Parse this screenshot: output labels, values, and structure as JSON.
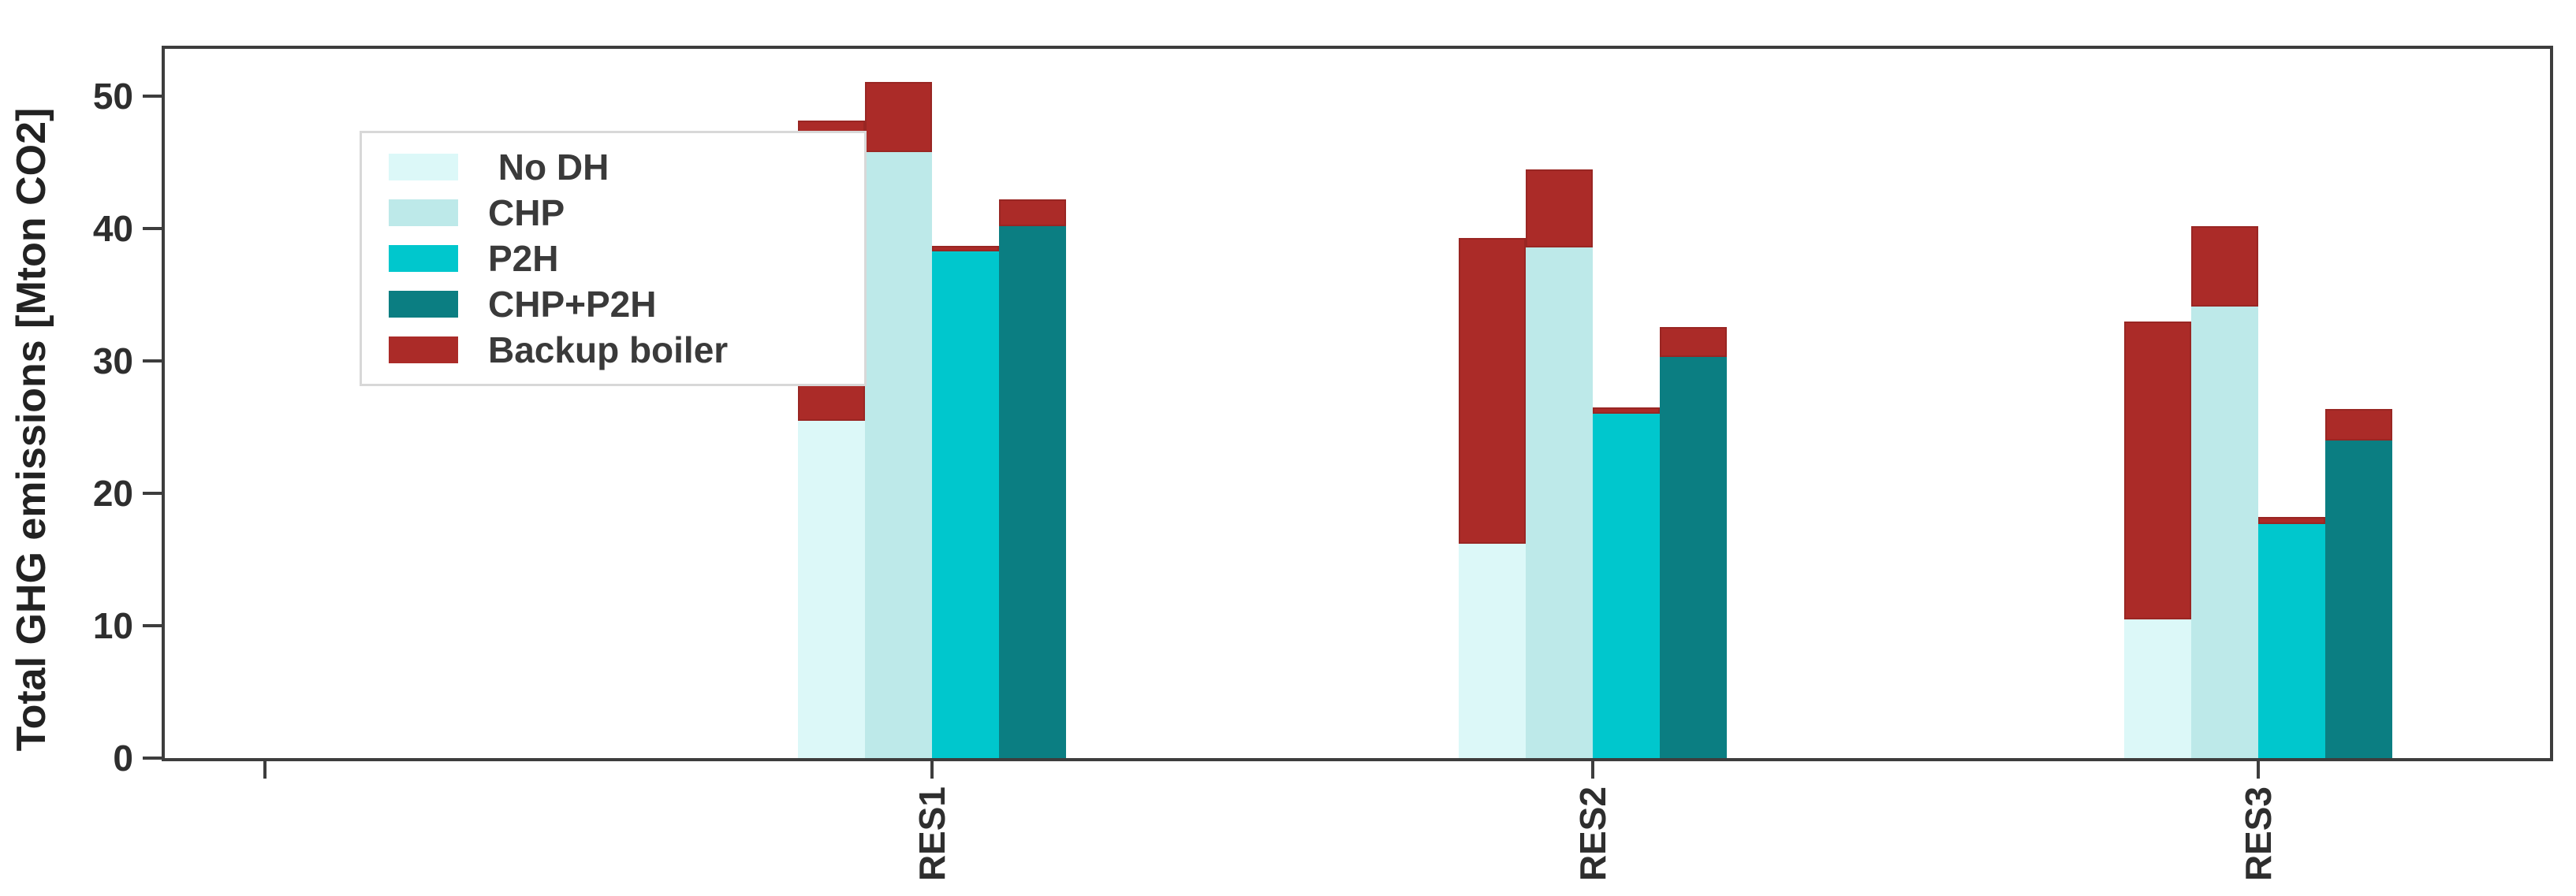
{
  "chart_data": {
    "type": "bar",
    "variant": "grouped-stacked",
    "title": "",
    "ylabel": "Total GHG emissions [Mton CO2]",
    "xlabel": "",
    "categories": [
      "RES1",
      "RES2",
      "RES3"
    ],
    "x_tick_labels": [
      "",
      "RES1",
      "RES2",
      "RES3"
    ],
    "yticks": [
      0,
      10,
      20,
      30,
      40,
      50
    ],
    "ylim": [
      0,
      53.6
    ],
    "grid": false,
    "legend_position": "upper-left",
    "series": [
      {
        "name": " No DH",
        "color": "#dcf8f8",
        "values": [
          25.5,
          16.2,
          10.5
        ]
      },
      {
        "name": "CHP",
        "color": "#bde9e9",
        "values": [
          45.8,
          38.6,
          34.1
        ]
      },
      {
        "name": "P2H",
        "color": "#00c7cd",
        "values": [
          38.3,
          26.0,
          17.7
        ]
      },
      {
        "name": "CHP+P2H",
        "color": "#0b7e82",
        "values": [
          40.2,
          30.3,
          24.0
        ]
      }
    ],
    "stacked_overlay": {
      "name": "Backup boiler",
      "color": "#ab2b28",
      "values_per_series": [
        [
          22.7,
          23.1,
          22.5
        ],
        [
          5.3,
          5.9,
          6.1
        ],
        [
          0.4,
          0.5,
          0.5
        ],
        [
          2.0,
          2.3,
          2.4
        ]
      ]
    },
    "colors": {
      "axis": "#3d3d3d",
      "text": "#2e2e2e",
      "legend_border": "#d8d8d8",
      "background": "#ffffff"
    }
  }
}
